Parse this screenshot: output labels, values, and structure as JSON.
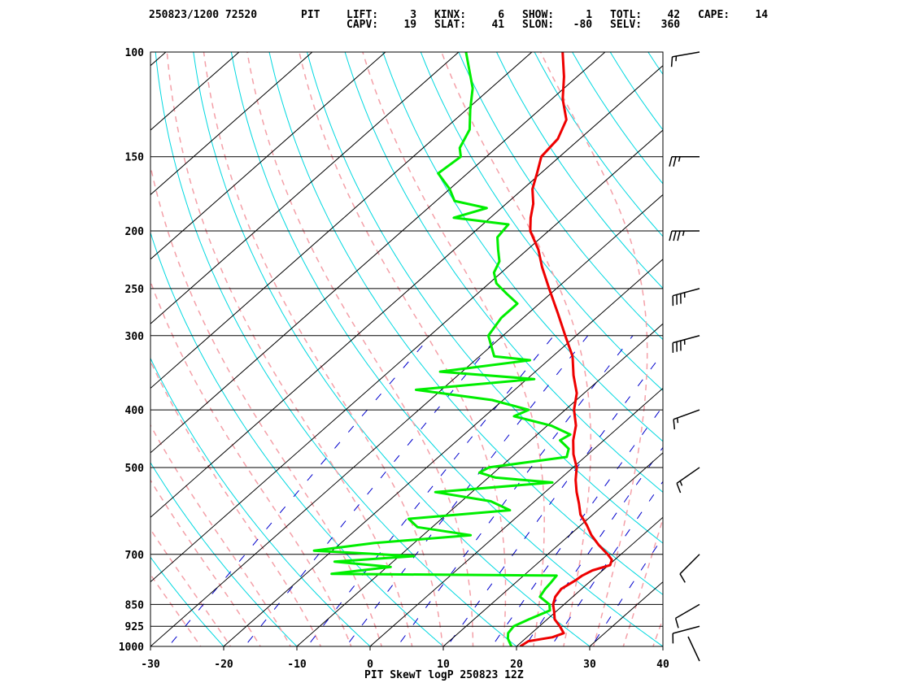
{
  "header": {
    "line1": [
      {
        "id": "time",
        "text": "250823/1200 72520"
      },
      {
        "id": "stn",
        "text": "PIT"
      },
      {
        "id": "lift",
        "text": "LIFT:     3"
      },
      {
        "id": "kinx",
        "text": "KINX:     6"
      },
      {
        "id": "show",
        "text": "SHOW:     1"
      },
      {
        "id": "totl",
        "text": "TOTL:    42"
      },
      {
        "id": "cape",
        "text": "CAPE:    14"
      }
    ],
    "line2": [
      {
        "id": "capv",
        "text": "CAPV:    19"
      },
      {
        "id": "slat",
        "text": "SLAT:    41"
      },
      {
        "id": "slon",
        "text": "SLON:   -80"
      },
      {
        "id": "selv",
        "text": "SELV:   360"
      }
    ]
  },
  "footer": {
    "title": "PIT SkewT logP 250823 12Z"
  },
  "colors": {
    "temperature": "#ee0000",
    "dewpoint": "#00ee00",
    "isobar": "#000000",
    "isotherm": "#000000",
    "dry_adiabat": "#00d8e0",
    "moist_adiabat": "#f4a0a8",
    "mixing_ratio": "#0000cc",
    "wind_barb": "#000000"
  },
  "chart_data": {
    "type": "line",
    "title": "PIT SkewT logP 250823 12Z",
    "xlim": [
      -30,
      40
    ],
    "ylim": [
      1000,
      100
    ],
    "y_scale": "log",
    "x_ticks": [
      -30,
      -20,
      -10,
      0,
      10,
      20,
      30,
      40
    ],
    "x_tick_labels": [
      "-30",
      "-20",
      "-10",
      "0",
      "10",
      "20",
      "30",
      "40"
    ],
    "y_ticks": [
      100,
      150,
      200,
      250,
      300,
      400,
      500,
      700,
      850,
      925,
      1000
    ],
    "y_tick_labels": [
      "100",
      "150",
      "200",
      "250",
      "300",
      "400",
      "500",
      "700",
      "850",
      "925",
      "1000"
    ],
    "skew_deg_per_unit_lnp": 40,
    "series": [
      {
        "id": "temperature",
        "points": [
          [
            1000,
            20.5
          ],
          [
            980,
            20.8
          ],
          [
            965,
            23.5
          ],
          [
            950,
            24.4
          ],
          [
            925,
            22.8
          ],
          [
            900,
            21.0
          ],
          [
            875,
            19.8
          ],
          [
            850,
            18.5
          ],
          [
            825,
            17.6
          ],
          [
            800,
            17.2
          ],
          [
            775,
            17.8
          ],
          [
            760,
            18.0
          ],
          [
            745,
            18.6
          ],
          [
            730,
            20.2
          ],
          [
            715,
            19.6
          ],
          [
            700,
            18.2
          ],
          [
            675,
            15.5
          ],
          [
            650,
            13.0
          ],
          [
            625,
            10.8
          ],
          [
            600,
            8.3
          ],
          [
            575,
            6.4
          ],
          [
            550,
            4.3
          ],
          [
            525,
            2.3
          ],
          [
            500,
            0.5
          ],
          [
            475,
            -2.0
          ],
          [
            450,
            -4.2
          ],
          [
            425,
            -6.1
          ],
          [
            400,
            -8.8
          ],
          [
            375,
            -11.0
          ],
          [
            350,
            -14.2
          ],
          [
            325,
            -17.3
          ],
          [
            300,
            -21.5
          ],
          [
            275,
            -26.0
          ],
          [
            250,
            -31.0
          ],
          [
            230,
            -35.3
          ],
          [
            215,
            -38.5
          ],
          [
            200,
            -42.5
          ],
          [
            190,
            -44.5
          ],
          [
            180,
            -46.3
          ],
          [
            170,
            -48.7
          ],
          [
            160,
            -50.5
          ],
          [
            150,
            -52.5
          ],
          [
            140,
            -53.0
          ],
          [
            130,
            -54.8
          ],
          [
            120,
            -58.5
          ],
          [
            110,
            -61.8
          ],
          [
            100,
            -65.8
          ]
        ]
      },
      {
        "id": "dewpoint",
        "points": [
          [
            1000,
            19.3
          ],
          [
            970,
            17.6
          ],
          [
            950,
            16.8
          ],
          [
            925,
            16.5
          ],
          [
            900,
            17.5
          ],
          [
            870,
            19.0
          ],
          [
            850,
            18.0
          ],
          [
            825,
            15.5
          ],
          [
            800,
            15.0
          ],
          [
            780,
            14.8
          ],
          [
            760,
            14.5
          ],
          [
            755,
            -16.5
          ],
          [
            735,
            -9.5
          ],
          [
            720,
            -18.0
          ],
          [
            705,
            -8.0
          ],
          [
            690,
            -22.5
          ],
          [
            670,
            -15.5
          ],
          [
            650,
            -3.5
          ],
          [
            630,
            -12.0
          ],
          [
            610,
            -14.5
          ],
          [
            590,
            -2.0
          ],
          [
            570,
            -6.0
          ],
          [
            550,
            -15.0
          ],
          [
            530,
            -0.5
          ],
          [
            520,
            -9.0
          ],
          [
            510,
            -12.0
          ],
          [
            500,
            -11.5
          ],
          [
            480,
            -2.5
          ],
          [
            465,
            -3.5
          ],
          [
            450,
            -6.0
          ],
          [
            440,
            -5.5
          ],
          [
            425,
            -9.5
          ],
          [
            410,
            -16.0
          ],
          [
            400,
            -15.0
          ],
          [
            385,
            -21.5
          ],
          [
            370,
            -33.5
          ],
          [
            355,
            -19.0
          ],
          [
            345,
            -33.0
          ],
          [
            330,
            -22.5
          ],
          [
            325,
            -28.0
          ],
          [
            300,
            -32.0
          ],
          [
            280,
            -33.0
          ],
          [
            265,
            -33.0
          ],
          [
            255,
            -36.0
          ],
          [
            245,
            -39.0
          ],
          [
            235,
            -41.0
          ],
          [
            225,
            -42.0
          ],
          [
            215,
            -44.0
          ],
          [
            205,
            -46.0
          ],
          [
            195,
            -46.5
          ],
          [
            190,
            -55.0
          ],
          [
            183,
            -52.0
          ],
          [
            178,
            -57.5
          ],
          [
            170,
            -60.0
          ],
          [
            160,
            -64.0
          ],
          [
            150,
            -63.5
          ],
          [
            145,
            -65.0
          ],
          [
            135,
            -66.5
          ],
          [
            125,
            -69.5
          ],
          [
            115,
            -72.5
          ],
          [
            100,
            -79.0
          ]
        ]
      }
    ],
    "wind_barbs": [
      {
        "pressure": 100,
        "direction_deg": 260,
        "speed_kt": 15
      },
      {
        "pressure": 150,
        "direction_deg": 270,
        "speed_kt": 25
      },
      {
        "pressure": 200,
        "direction_deg": 270,
        "speed_kt": 35
      },
      {
        "pressure": 250,
        "direction_deg": 255,
        "speed_kt": 35
      },
      {
        "pressure": 300,
        "direction_deg": 255,
        "speed_kt": 35
      },
      {
        "pressure": 400,
        "direction_deg": 250,
        "speed_kt": 15
      },
      {
        "pressure": 500,
        "direction_deg": 235,
        "speed_kt": 15
      },
      {
        "pressure": 700,
        "direction_deg": 225,
        "speed_kt": 10
      },
      {
        "pressure": 850,
        "direction_deg": 240,
        "speed_kt": 10
      },
      {
        "pressure": 925,
        "direction_deg": 255,
        "speed_kt": 10
      },
      {
        "pressure": 1000,
        "direction_deg": 330,
        "speed_kt": 0
      }
    ]
  }
}
